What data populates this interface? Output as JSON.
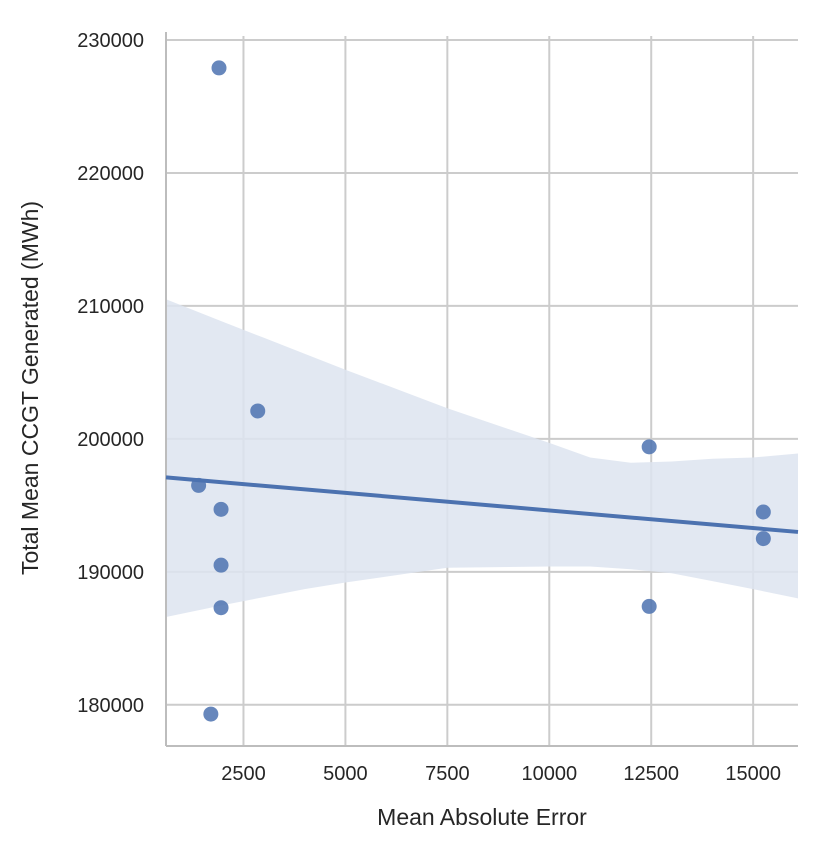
{
  "chart_data": {
    "type": "scatter",
    "title": "",
    "xlabel": "Mean Absolute Error",
    "ylabel": "Total Mean CCGT Generated (MWh)",
    "xlim": [
      600,
      16100
    ],
    "ylim": [
      176900,
      230300
    ],
    "xticks": [
      2500,
      5000,
      7500,
      10000,
      12500,
      15000
    ],
    "yticks": [
      180000,
      190000,
      200000,
      210000,
      220000,
      230000
    ],
    "xtick_labels": [
      "2500",
      "5000",
      "7500",
      "10000",
      "12500",
      "15000"
    ],
    "ytick_labels": [
      "180000",
      "190000",
      "200000",
      "210000",
      "220000",
      "230000"
    ],
    "grid": true,
    "colors": {
      "points": "#4c72b0",
      "fit_line": "#4c72b0",
      "confidence_band": "#dde4f0",
      "grid": "#cccccc",
      "axis": "#bdbdbd"
    },
    "points": [
      {
        "x": 1900,
        "y": 227900
      },
      {
        "x": 2850,
        "y": 202100
      },
      {
        "x": 1400,
        "y": 196500
      },
      {
        "x": 1950,
        "y": 194700
      },
      {
        "x": 1950,
        "y": 190500
      },
      {
        "x": 1950,
        "y": 187300
      },
      {
        "x": 1700,
        "y": 179300
      },
      {
        "x": 12450,
        "y": 199400
      },
      {
        "x": 12450,
        "y": 187400
      },
      {
        "x": 15250,
        "y": 194500
      },
      {
        "x": 15250,
        "y": 192500
      }
    ],
    "regression": {
      "x": [
        600,
        16100
      ],
      "y": [
        197100,
        193000
      ]
    },
    "confidence_band": {
      "x": [
        600,
        2000,
        3000,
        4000,
        5000,
        7500,
        10000,
        11000,
        12000,
        13000,
        14000,
        15000,
        16100
      ],
      "upper": [
        210500,
        208800,
        207600,
        206400,
        205200,
        202300,
        199700,
        198600,
        198200,
        198300,
        198500,
        198600,
        198900
      ],
      "lower": [
        186600,
        187500,
        188100,
        188700,
        189200,
        190300,
        190400,
        190400,
        190200,
        189900,
        189300,
        188700,
        188000
      ]
    }
  }
}
